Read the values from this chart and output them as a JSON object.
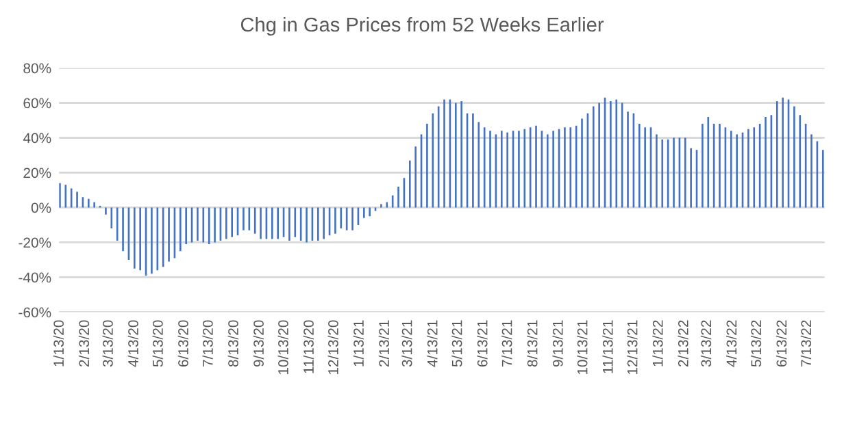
{
  "chart_data": {
    "type": "bar",
    "title": "Chg in Gas Prices from 52 Weeks Earlier",
    "color": "#4472c4",
    "x": [
      "2020-01-13",
      "2020-01-20",
      "2020-01-27",
      "2020-02-03",
      "2020-02-10",
      "2020-02-17",
      "2020-02-24",
      "2020-03-02",
      "2020-03-09",
      "2020-03-16",
      "2020-03-23",
      "2020-03-30",
      "2020-04-06",
      "2020-04-13",
      "2020-04-20",
      "2020-04-27",
      "2020-05-04",
      "2020-05-11",
      "2020-05-18",
      "2020-05-25",
      "2020-06-01",
      "2020-06-08",
      "2020-06-15",
      "2020-06-22",
      "2020-06-29",
      "2020-07-06",
      "2020-07-13",
      "2020-07-20",
      "2020-07-27",
      "2020-08-03",
      "2020-08-10",
      "2020-08-17",
      "2020-08-24",
      "2020-08-31",
      "2020-09-07",
      "2020-09-14",
      "2020-09-21",
      "2020-09-28",
      "2020-10-05",
      "2020-10-12",
      "2020-10-19",
      "2020-10-26",
      "2020-11-02",
      "2020-11-09",
      "2020-11-16",
      "2020-11-23",
      "2020-11-30",
      "2020-12-07",
      "2020-12-14",
      "2020-12-21",
      "2020-12-28",
      "2021-01-04",
      "2021-01-11",
      "2021-01-18",
      "2021-01-25",
      "2021-02-01",
      "2021-02-08",
      "2021-02-15",
      "2021-02-22",
      "2021-03-01",
      "2021-03-08",
      "2021-03-15",
      "2021-03-22",
      "2021-03-29",
      "2021-04-05",
      "2021-04-12",
      "2021-04-19",
      "2021-04-26",
      "2021-05-03",
      "2021-05-10",
      "2021-05-17",
      "2021-05-24",
      "2021-05-31",
      "2021-06-07",
      "2021-06-14",
      "2021-06-21",
      "2021-06-28",
      "2021-07-05",
      "2021-07-12",
      "2021-07-19",
      "2021-07-26",
      "2021-08-02",
      "2021-08-09",
      "2021-08-16",
      "2021-08-23",
      "2021-08-30",
      "2021-09-06",
      "2021-09-13",
      "2021-09-20",
      "2021-09-27",
      "2021-10-04",
      "2021-10-11",
      "2021-10-18",
      "2021-10-25",
      "2021-11-01",
      "2021-11-08",
      "2021-11-15",
      "2021-11-22",
      "2021-11-29",
      "2021-12-06",
      "2021-12-13",
      "2021-12-20",
      "2021-12-27",
      "2022-01-03",
      "2022-01-10",
      "2022-01-17",
      "2022-01-24",
      "2022-01-31",
      "2022-02-07",
      "2022-02-14",
      "2022-02-21",
      "2022-02-28",
      "2022-03-07",
      "2022-03-14",
      "2022-03-21",
      "2022-03-28",
      "2022-04-04",
      "2022-04-11",
      "2022-04-18",
      "2022-04-25",
      "2022-05-02",
      "2022-05-09",
      "2022-05-16",
      "2022-05-23",
      "2022-05-30",
      "2022-06-06",
      "2022-06-13",
      "2022-06-20",
      "2022-06-27",
      "2022-07-04",
      "2022-07-11",
      "2022-07-18",
      "2022-07-25",
      "2022-08-01"
    ],
    "values": [
      14,
      13,
      11,
      9,
      6,
      5,
      3,
      1,
      -4,
      -12,
      -19,
      -25,
      -30,
      -35,
      -36,
      -39,
      -38,
      -36,
      -34,
      -31,
      -29,
      -25,
      -21,
      -20,
      -19,
      -20,
      -21,
      -20,
      -19,
      -18,
      -17,
      -16,
      -13,
      -13,
      -15,
      -18,
      -18,
      -18,
      -18,
      -17,
      -19,
      -17,
      -19,
      -20,
      -19,
      -19,
      -18,
      -16,
      -15,
      -12,
      -13,
      -13,
      -10,
      -6,
      -5,
      -2,
      2,
      3,
      7,
      12,
      17,
      27,
      35,
      42,
      48,
      54,
      58,
      62,
      62,
      60,
      61,
      54,
      54,
      49,
      46,
      44,
      42,
      44,
      43,
      44,
      44,
      45,
      46,
      47,
      44,
      42,
      44,
      45,
      46,
      46,
      47,
      51,
      54,
      58,
      60,
      63,
      61,
      62,
      60,
      55,
      54,
      48,
      46,
      46,
      42,
      39,
      39,
      40,
      40,
      40,
      34,
      33,
      48,
      52,
      48,
      48,
      46,
      44,
      42,
      43,
      45,
      46,
      48,
      52,
      53,
      61,
      63,
      62,
      58,
      53,
      48,
      42,
      38,
      33
    ],
    "xlim": [
      "2020-01-12",
      "2022-08-03"
    ],
    "xticks": [
      {
        "value": "2020-01-13",
        "label": "1/13/20"
      },
      {
        "value": "2020-02-13",
        "label": "2/13/20"
      },
      {
        "value": "2020-03-13",
        "label": "3/13/20"
      },
      {
        "value": "2020-04-13",
        "label": "4/13/20"
      },
      {
        "value": "2020-05-13",
        "label": "5/13/20"
      },
      {
        "value": "2020-06-13",
        "label": "6/13/20"
      },
      {
        "value": "2020-07-13",
        "label": "7/13/20"
      },
      {
        "value": "2020-08-13",
        "label": "8/13/20"
      },
      {
        "value": "2020-09-13",
        "label": "9/13/20"
      },
      {
        "value": "2020-10-13",
        "label": "10/13/20"
      },
      {
        "value": "2020-11-13",
        "label": "11/13/20"
      },
      {
        "value": "2020-12-13",
        "label": "12/13/20"
      },
      {
        "value": "2021-01-13",
        "label": "1/13/21"
      },
      {
        "value": "2021-02-13",
        "label": "2/13/21"
      },
      {
        "value": "2021-03-13",
        "label": "3/13/21"
      },
      {
        "value": "2021-04-13",
        "label": "4/13/21"
      },
      {
        "value": "2021-05-13",
        "label": "5/13/21"
      },
      {
        "value": "2021-06-13",
        "label": "6/13/21"
      },
      {
        "value": "2021-07-13",
        "label": "7/13/21"
      },
      {
        "value": "2021-08-13",
        "label": "8/13/21"
      },
      {
        "value": "2021-09-13",
        "label": "9/13/21"
      },
      {
        "value": "2021-10-13",
        "label": "10/13/21"
      },
      {
        "value": "2021-11-13",
        "label": "11/13/21"
      },
      {
        "value": "2021-12-13",
        "label": "12/13/21"
      },
      {
        "value": "2022-01-13",
        "label": "1/13/22"
      },
      {
        "value": "2022-02-13",
        "label": "2/13/22"
      },
      {
        "value": "2022-03-13",
        "label": "3/13/22"
      },
      {
        "value": "2022-04-13",
        "label": "4/13/22"
      },
      {
        "value": "2022-05-13",
        "label": "5/13/22"
      },
      {
        "value": "2022-06-13",
        "label": "6/13/22"
      },
      {
        "value": "2022-07-13",
        "label": "7/13/22"
      }
    ],
    "ylim": [
      -60,
      80
    ],
    "yticks": [
      {
        "value": -60,
        "label": "-60%"
      },
      {
        "value": -40,
        "label": "-40%"
      },
      {
        "value": -20,
        "label": "-20%"
      },
      {
        "value": 0,
        "label": "0%"
      },
      {
        "value": 20,
        "label": "20%"
      },
      {
        "value": 40,
        "label": "40%"
      },
      {
        "value": 60,
        "label": "60%"
      },
      {
        "value": 80,
        "label": "80%"
      }
    ],
    "grid": "y",
    "legend": false
  }
}
